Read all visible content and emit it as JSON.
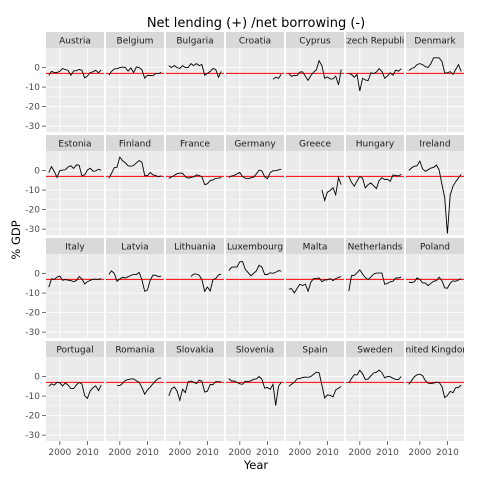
{
  "chart_data": {
    "type": "line",
    "title": "Net lending (+) /net borrowing (-)",
    "xlabel": "Year",
    "ylabel": "% GDP",
    "xlim": [
      1995,
      2016
    ],
    "ylim": [
      -33,
      10
    ],
    "x_ticks": [
      2000,
      2010
    ],
    "y_ticks": [
      0,
      -10,
      -20,
      -30
    ],
    "reference_line": {
      "y": -3,
      "color": "#ff0000"
    },
    "grid": true,
    "colors": {
      "panel_bg": "#ebebeb",
      "strip_bg": "#d9d9d9",
      "grid": "#ffffff",
      "line": "#000000"
    },
    "panels": [
      {
        "name": "Austria",
        "x": [
          1996,
          1997,
          1998,
          1999,
          2000,
          2001,
          2002,
          2003,
          2004,
          2005,
          2006,
          2007,
          2008,
          2009,
          2010,
          2011,
          2012,
          2013,
          2014,
          2015
        ],
        "values": [
          -4,
          -2,
          -2.5,
          -2.5,
          -2,
          -0.5,
          -1,
          -1.5,
          -4,
          -1.7,
          -1.6,
          -1,
          -1.4,
          -5.3,
          -4.4,
          -2.6,
          -2.2,
          -1.4,
          -2.7,
          -1.2
        ]
      },
      {
        "name": "Belgium",
        "x": [
          1996,
          1997,
          1998,
          1999,
          2000,
          2001,
          2002,
          2003,
          2004,
          2005,
          2006,
          2007,
          2008,
          2009,
          2010,
          2011,
          2012,
          2013,
          2014,
          2015
        ],
        "values": [
          -4,
          -2,
          -0.7,
          -0.6,
          -0.1,
          0.2,
          0,
          -1.8,
          -0.2,
          -2.6,
          0.3,
          0,
          -1.1,
          -5.4,
          -4,
          -4.1,
          -4.2,
          -3,
          -3.1,
          -2.5
        ]
      },
      {
        "name": "Bulgaria",
        "x": [
          1996,
          1997,
          1998,
          1999,
          2000,
          2001,
          2002,
          2003,
          2004,
          2005,
          2006,
          2007,
          2008,
          2009,
          2010,
          2011,
          2012,
          2013,
          2014,
          2015
        ],
        "values": [
          1,
          0,
          1,
          0,
          -0.5,
          1,
          0,
          0,
          2,
          1,
          2,
          1,
          1.5,
          -4,
          -3,
          -2,
          -0.5,
          -1,
          -5,
          -2
        ]
      },
      {
        "name": "Croatia",
        "x": [
          2012,
          2013,
          2014,
          2015
        ],
        "values": [
          -6,
          -5,
          -5.5,
          -3.5
        ]
      },
      {
        "name": "Cyprus",
        "x": [
          1996,
          1997,
          1998,
          1999,
          2000,
          2001,
          2002,
          2003,
          2004,
          2005,
          2006,
          2007,
          2008,
          2009,
          2010,
          2011,
          2012,
          2013,
          2014,
          2015
        ],
        "values": [
          -3,
          -4.5,
          -4,
          -4.2,
          -2.3,
          -2.2,
          -4.4,
          -6.6,
          -4.1,
          -2.4,
          -1.2,
          3.5,
          0.9,
          -5.5,
          -4.8,
          -5.8,
          -5.8,
          -4.4,
          -8.9,
          -1
        ]
      },
      {
        "name": "Czech Republic",
        "x": [
          1996,
          1997,
          1998,
          1999,
          2000,
          2001,
          2002,
          2003,
          2004,
          2005,
          2006,
          2007,
          2008,
          2009,
          2010,
          2011,
          2012,
          2013,
          2014,
          2015
        ],
        "values": [
          -3,
          -3.5,
          -5,
          -3.5,
          -12,
          -5.5,
          -6.4,
          -6.7,
          -2.7,
          -3.1,
          -2.3,
          -0.6,
          -2,
          -5.5,
          -4.4,
          -2.7,
          -3.9,
          -1.3,
          -1.9,
          -0.6
        ]
      },
      {
        "name": "Denmark",
        "x": [
          1996,
          1997,
          1998,
          1999,
          2000,
          2001,
          2002,
          2003,
          2004,
          2005,
          2006,
          2007,
          2008,
          2009,
          2010,
          2011,
          2012,
          2013,
          2014,
          2015
        ],
        "values": [
          -1.5,
          -0.5,
          0,
          1.5,
          2,
          1.5,
          0.5,
          0,
          2,
          5,
          5,
          5,
          3.2,
          -2.8,
          -2.7,
          -2.1,
          -3.5,
          -1,
          1.5,
          -2
        ]
      },
      {
        "name": "Estonia",
        "x": [
          1996,
          1997,
          1998,
          1999,
          2000,
          2001,
          2002,
          2003,
          2004,
          2005,
          2006,
          2007,
          2008,
          2009,
          2010,
          2011,
          2012,
          2013,
          2014,
          2015
        ],
        "values": [
          -1,
          2,
          -0.5,
          -3.5,
          -0.1,
          0.2,
          0.4,
          1.8,
          2.4,
          1.1,
          2.9,
          2.7,
          -2.7,
          -2.2,
          0.2,
          1.2,
          -0.3,
          -0.2,
          0.7,
          0.1
        ]
      },
      {
        "name": "Finland",
        "x": [
          1996,
          1997,
          1998,
          1999,
          2000,
          2001,
          2002,
          2003,
          2004,
          2005,
          2006,
          2007,
          2008,
          2009,
          2010,
          2011,
          2012,
          2013,
          2014,
          2015
        ],
        "values": [
          -4,
          -1.5,
          1.5,
          1.7,
          6.9,
          5,
          4,
          2.4,
          2.2,
          2.6,
          3.9,
          5.1,
          4.2,
          -2.5,
          -2.6,
          -1,
          -2.2,
          -2.6,
          -3.2,
          -2.7
        ]
      },
      {
        "name": "France",
        "x": [
          1996,
          1997,
          1998,
          1999,
          2000,
          2001,
          2002,
          2003,
          2004,
          2005,
          2006,
          2007,
          2008,
          2009,
          2010,
          2011,
          2012,
          2013,
          2014,
          2015
        ],
        "values": [
          -4,
          -3.3,
          -2.5,
          -1.6,
          -1.3,
          -1.4,
          -3.1,
          -3.9,
          -3.5,
          -3.2,
          -2.3,
          -2.5,
          -3.2,
          -7.2,
          -6.8,
          -5.1,
          -4.8,
          -4,
          -3.9,
          -3.5
        ]
      },
      {
        "name": "Germany",
        "x": [
          1996,
          1997,
          1998,
          1999,
          2000,
          2001,
          2002,
          2003,
          2004,
          2005,
          2006,
          2007,
          2008,
          2009,
          2010,
          2011,
          2012,
          2013,
          2014,
          2015
        ],
        "values": [
          -3.5,
          -2.8,
          -2.5,
          -1.7,
          -1,
          -3.1,
          -3.9,
          -4.2,
          -3.7,
          -3.4,
          -1.7,
          0.2,
          -0.2,
          -3.2,
          -4.2,
          -1,
          -0.1,
          -0.1,
          0.3,
          0.7
        ]
      },
      {
        "name": "Greece",
        "x": [
          2008,
          2009,
          2010,
          2011,
          2012,
          2013,
          2014,
          2015
        ],
        "values": [
          -9.9,
          -15.3,
          -11.1,
          -10.2,
          -8.8,
          -12.4,
          -3.6,
          -7.2
        ]
      },
      {
        "name": "Hungary",
        "x": [
          1996,
          1997,
          1998,
          1999,
          2000,
          2001,
          2002,
          2003,
          2004,
          2005,
          2006,
          2007,
          2008,
          2009,
          2010,
          2011,
          2012,
          2013,
          2014,
          2015
        ],
        "values": [
          -3,
          -6,
          -8,
          -5.4,
          -3,
          -4,
          -8.9,
          -7.2,
          -6.4,
          -7.8,
          -9.3,
          -5.1,
          -3.7,
          -4.6,
          -4.5,
          -5.5,
          -2.3,
          -2.5,
          -2.8,
          -2
        ]
      },
      {
        "name": "Ireland",
        "x": [
          1996,
          1997,
          1998,
          1999,
          2000,
          2001,
          2002,
          2003,
          2004,
          2005,
          2006,
          2007,
          2008,
          2009,
          2010,
          2011,
          2012,
          2013,
          2014,
          2015
        ],
        "values": [
          0,
          1.3,
          2.2,
          2.4,
          4.8,
          0.9,
          -0.4,
          0.4,
          1.3,
          1.6,
          2.8,
          0.3,
          -7,
          -13.8,
          -32.3,
          -12.6,
          -8,
          -5.7,
          -3.8,
          -2
        ]
      },
      {
        "name": "Italy",
        "x": [
          1996,
          1997,
          1998,
          1999,
          2000,
          2001,
          2002,
          2003,
          2004,
          2005,
          2006,
          2007,
          2008,
          2009,
          2010,
          2011,
          2012,
          2013,
          2014,
          2015
        ],
        "values": [
          -7,
          -2.7,
          -3,
          -1.8,
          -1.3,
          -3.4,
          -3.1,
          -3.4,
          -3.6,
          -4.2,
          -3.6,
          -1.5,
          -2.7,
          -5.3,
          -4.2,
          -3.5,
          -2.9,
          -2.9,
          -3,
          -2.6
        ]
      },
      {
        "name": "Latvia",
        "x": [
          1996,
          1997,
          1998,
          1999,
          2000,
          2001,
          2002,
          2003,
          2004,
          2005,
          2006,
          2007,
          2008,
          2009,
          2010,
          2011,
          2012,
          2013,
          2014,
          2015
        ],
        "values": [
          -0.5,
          1.4,
          0,
          -3.9,
          -2.8,
          -2,
          -2.3,
          -1.6,
          -1,
          -0.4,
          -0.5,
          0.6,
          -3.1,
          -9.1,
          -8.5,
          -3.4,
          -0.8,
          -0.9,
          -1.6,
          -1.3
        ]
      },
      {
        "name": "Lithuania",
        "x": [
          2004,
          2005,
          2006,
          2007,
          2008,
          2009,
          2010,
          2011,
          2012,
          2013,
          2014,
          2015
        ],
        "values": [
          -1.5,
          -0.3,
          -0.3,
          -0.8,
          -3.1,
          -9.1,
          -6.9,
          -8.9,
          -3.1,
          -2.6,
          -0.7,
          -0.2
        ]
      },
      {
        "name": "Luxembourg",
        "x": [
          1996,
          1997,
          1998,
          1999,
          2000,
          2001,
          2002,
          2003,
          2004,
          2005,
          2006,
          2007,
          2008,
          2009,
          2010,
          2011,
          2012,
          2013,
          2014,
          2015
        ],
        "values": [
          1.5,
          3.2,
          3.4,
          3.4,
          6,
          6.1,
          2.1,
          0.5,
          -1.1,
          0,
          1.4,
          4.2,
          3.3,
          -0.5,
          -0.5,
          0.4,
          0.1,
          0.6,
          1.5,
          1.2
        ]
      },
      {
        "name": "Malta",
        "x": [
          1996,
          1997,
          1998,
          1999,
          2000,
          2001,
          2002,
          2003,
          2004,
          2005,
          2006,
          2007,
          2008,
          2009,
          2010,
          2011,
          2012,
          2013,
          2014,
          2015
        ],
        "values": [
          -8,
          -7.7,
          -9.9,
          -7.7,
          -5.5,
          -6.1,
          -5.4,
          -9.1,
          -4.4,
          -2.6,
          -2.5,
          -2.3,
          -4.2,
          -3.3,
          -3.2,
          -2.6,
          -3.6,
          -2.6,
          -2,
          -1.5
        ]
      },
      {
        "name": "Netherlands",
        "x": [
          1996,
          1997,
          1998,
          1999,
          2000,
          2001,
          2002,
          2003,
          2004,
          2005,
          2006,
          2007,
          2008,
          2009,
          2010,
          2011,
          2012,
          2013,
          2014,
          2015
        ],
        "values": [
          -9,
          -1.1,
          -0.9,
          0.4,
          1.9,
          -0.3,
          -2.1,
          -3.1,
          -1.8,
          -0.3,
          0.2,
          0.2,
          0.2,
          -5.5,
          -5,
          -4.3,
          -3.9,
          -2.3,
          -2.3,
          -1.8
        ]
      },
      {
        "name": "Poland",
        "x": [
          1996,
          1997,
          1998,
          1999,
          2000,
          2001,
          2002,
          2003,
          2004,
          2005,
          2006,
          2007,
          2008,
          2009,
          2010,
          2011,
          2012,
          2013,
          2014,
          2015
        ],
        "values": [
          -4.5,
          -4.6,
          -4.3,
          -2.3,
          -3,
          -4.8,
          -4.8,
          -6.1,
          -5,
          -4,
          -3.6,
          -1.9,
          -3.6,
          -7.3,
          -7.5,
          -4.9,
          -3.7,
          -4,
          -3.3,
          -2.6
        ]
      },
      {
        "name": "Portugal",
        "x": [
          1996,
          1997,
          1998,
          1999,
          2000,
          2001,
          2002,
          2003,
          2004,
          2005,
          2006,
          2007,
          2008,
          2009,
          2010,
          2011,
          2012,
          2013,
          2014,
          2015
        ],
        "values": [
          -5,
          -3.7,
          -4.4,
          -3,
          -3.2,
          -4.8,
          -3.3,
          -4.4,
          -6.2,
          -6.2,
          -4.3,
          -3,
          -3.8,
          -9.8,
          -11.2,
          -7.4,
          -5.7,
          -4.8,
          -7.2,
          -4.4
        ]
      },
      {
        "name": "Romania",
        "x": [
          1999,
          2000,
          2001,
          2002,
          2003,
          2004,
          2005,
          2006,
          2007,
          2008,
          2009,
          2010,
          2011,
          2012,
          2013,
          2014,
          2015
        ],
        "values": [
          -4.5,
          -4.7,
          -3.5,
          -2,
          -1.5,
          -1.2,
          -1.2,
          -2.2,
          -2.9,
          -5.6,
          -9.1,
          -6.9,
          -5.4,
          -3.7,
          -2.1,
          -0.9,
          -0.7
        ]
      },
      {
        "name": "Slovakia",
        "x": [
          1996,
          1997,
          1998,
          1999,
          2000,
          2001,
          2002,
          2003,
          2004,
          2005,
          2006,
          2007,
          2008,
          2009,
          2010,
          2011,
          2012,
          2013,
          2014,
          2015
        ],
        "values": [
          -9.9,
          -6.3,
          -5.3,
          -7.4,
          -12.1,
          -6.5,
          -8.2,
          -2.7,
          -2.3,
          -2.9,
          -3.6,
          -1.9,
          -2.4,
          -7.9,
          -7.5,
          -4.1,
          -4.2,
          -2.6,
          -2.7,
          -2.7
        ]
      },
      {
        "name": "Slovenia",
        "x": [
          1996,
          1997,
          1998,
          1999,
          2000,
          2001,
          2002,
          2003,
          2004,
          2005,
          2006,
          2007,
          2008,
          2009,
          2010,
          2011,
          2012,
          2013,
          2014,
          2015
        ],
        "values": [
          -1,
          -2.3,
          -2.3,
          -3,
          -3.7,
          -4,
          -2.4,
          -2.6,
          -2.2,
          -1.4,
          -1.2,
          0,
          -1.4,
          -5.9,
          -5.6,
          -6.6,
          -4,
          -14.9,
          -5,
          -2.9
        ]
      },
      {
        "name": "Spain",
        "x": [
          1996,
          1997,
          1998,
          1999,
          2000,
          2001,
          2002,
          2003,
          2004,
          2005,
          2006,
          2007,
          2008,
          2009,
          2010,
          2011,
          2012,
          2013,
          2014,
          2015
        ],
        "values": [
          -5,
          -4,
          -3,
          -1.2,
          -1,
          -0.5,
          -0.3,
          -0.4,
          0,
          1.2,
          2.2,
          2,
          -4.4,
          -11,
          -9.4,
          -9.6,
          -10.4,
          -6.9,
          -5.9,
          -5.1
        ]
      },
      {
        "name": "Sweden",
        "x": [
          1996,
          1997,
          1998,
          1999,
          2000,
          2001,
          2002,
          2003,
          2004,
          2005,
          2006,
          2007,
          2008,
          2009,
          2010,
          2011,
          2012,
          2013,
          2014,
          2015
        ],
        "values": [
          -3.3,
          -1,
          1,
          0.8,
          3.2,
          1.4,
          -1.5,
          -1.3,
          0.4,
          1.8,
          2.2,
          3.3,
          2,
          -0.7,
          0,
          -0.1,
          -0.9,
          -1.4,
          -1.6,
          0
        ]
      },
      {
        "name": "United Kingdom",
        "x": [
          1996,
          1997,
          1998,
          1999,
          2000,
          2001,
          2002,
          2003,
          2004,
          2005,
          2006,
          2007,
          2008,
          2009,
          2010,
          2011,
          2012,
          2013,
          2014,
          2015
        ],
        "values": [
          -4,
          -2.2,
          -0.1,
          0.9,
          1.2,
          0.5,
          -2.1,
          -3.4,
          -3.5,
          -3.4,
          -2.9,
          -3,
          -5.1,
          -10.8,
          -9.7,
          -7.6,
          -8.3,
          -5.7,
          -5.6,
          -4.4
        ]
      }
    ]
  }
}
